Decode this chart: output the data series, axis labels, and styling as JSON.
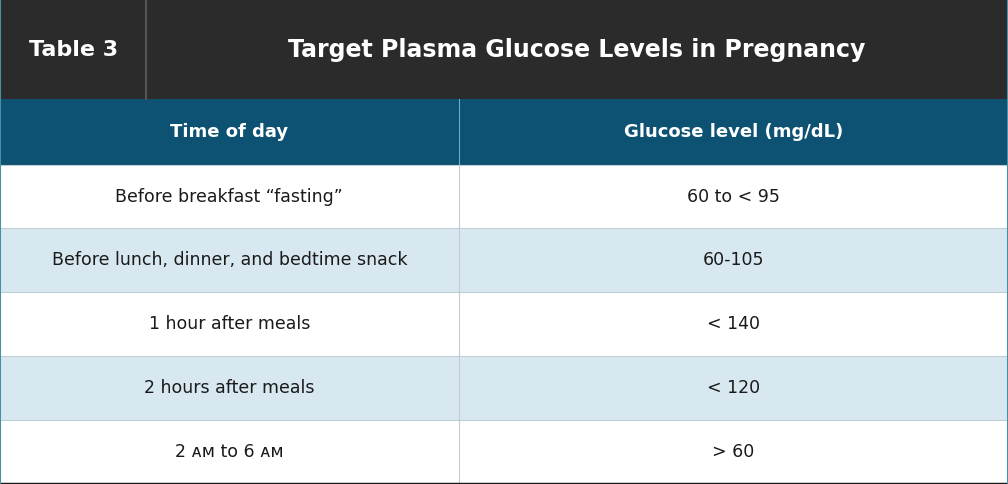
{
  "title_left": "Table 3",
  "title_right": "Target Plasma Glucose Levels in Pregnancy",
  "header_col1": "Time of day",
  "header_col2": "Glucose level (mg/dL)",
  "rows": [
    {
      "time": "Before breakfast “fasting”",
      "glucose": "60 to < 95",
      "shaded": false
    },
    {
      "time": "Before lunch, dinner, and bedtime snack",
      "glucose": "60-105",
      "shaded": true
    },
    {
      "time": "1 hour after meals",
      "glucose": "< 140",
      "shaded": false
    },
    {
      "time": "2 hours after meals",
      "glucose": "< 120",
      "shaded": true
    },
    {
      "time": "2 ᴀᴍ to 6 ᴀᴍ",
      "glucose": "> 60",
      "shaded": false
    }
  ],
  "title_bg": "#2b2b2b",
  "title_separator_color": "#555555",
  "header_bg": "#0d5272",
  "header_text_color": "#ffffff",
  "title_text_color": "#ffffff",
  "row_bg_shaded": "#d8e8f0",
  "row_bg_normal": "#ffffff",
  "row_text_color": "#1a1a1a",
  "divider_line_color": "#c0cdd4",
  "bottom_border_color": "#1a1a1a",
  "col_split": 0.455,
  "table3_col_split": 0.145,
  "fig_bg": "#ffffff",
  "outer_border_color": "#4a8fa8",
  "title_fontsize": 16,
  "main_title_fontsize": 17,
  "header_fontsize": 13,
  "row_fontsize": 12.5
}
